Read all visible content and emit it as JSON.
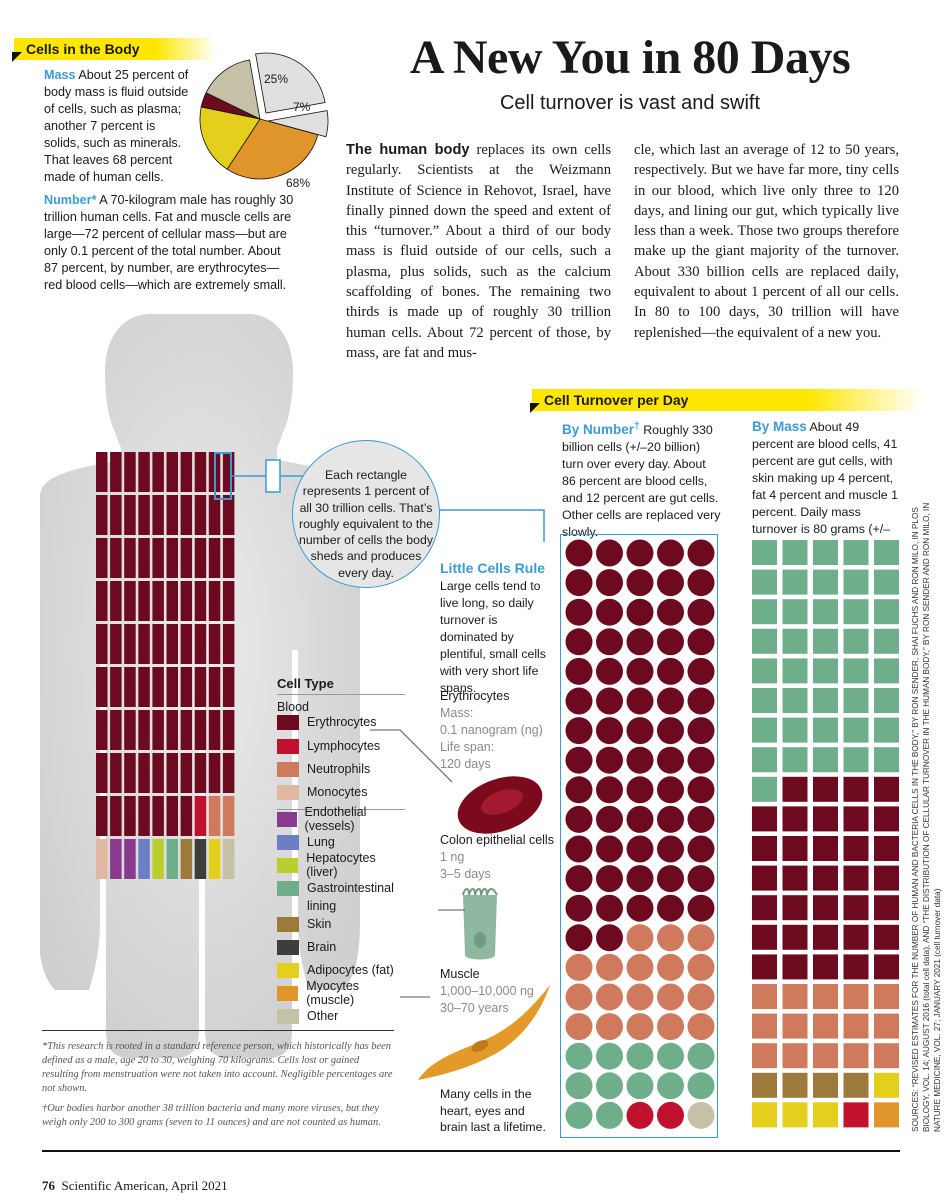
{
  "title": "A New You in 80 Days",
  "subtitle": "Cell turnover is vast and swift",
  "cells_in_body": {
    "tag": "Cells in the Body",
    "mass_label": "Mass",
    "mass_text": "About 25 percent of body mass is fluid outside of cells, such as plasma; another 7 percent is solids, such as minerals. That leaves 68 percent made of human cells.",
    "number_label": "Number*",
    "number_text": "A 70-kilogram male has roughly 30 trillion human cells. Fat and muscle cells are large—72 percent of cellular mass—but are only 0.1 percent of the total number. About 87 percent, by number, are erythrocytes—red blood cells—which are extremely small."
  },
  "body_paragraph": {
    "lead": "The human body",
    "col1": "replaces its own cells regularly. Scientists at the Weizmann Institute of Science in Rehovot, Israel, have finally pinned down the speed and extent of this “turnover.” About a third of our body mass is fluid outside of our cells, such a plasma, plus solids, such as the calcium scaffolding of bones. The remaining two thirds is made up of roughly 30 trillion human cells. About 72 percent of those, by mass, are fat and mus-",
    "col2": "cle, which last an average of 12 to 50 years, respectively. But we have far more, tiny cells in our blood, which live only three to 120 days, and lining our gut, which typically live less than a week. Those two groups therefore make up the giant majority of the turnover. About 330 billion cells are replaced daily, equivalent to about 1 percent of all our cells. In 80 to 100 days, 30 trillion will have replenished—the equivalent of a new you."
  },
  "rectangle_note": "Each rectangle represents 1 percent of all 30 trillion cells. That’s roughly equivalent to the number of cells the body sheds and produces every day.",
  "turnover": {
    "tag": "Cell Turnover per Day",
    "by_number_label": "By Number",
    "dagger": "†",
    "by_number_text": "Roughly 330 billion cells (+/–20 billion) turn over every day. About 86 percent are blood cells, and 12 percent are gut cells. Other cells are replaced very slowly.",
    "by_mass_label": "By Mass",
    "by_mass_text": "About 49 percent are blood cells, 41 percent are gut cells, with skin making up 4 percent, fat 4 percent and muscle 1 percent. Daily mass turnover is 80 grams (+/–20)."
  },
  "little_cells": {
    "title": "Little Cells Rule",
    "text": "Large cells tend to live long, so daily turnover is dominated by plentiful, small cells with very short life spans.",
    "erythrocytes": {
      "name": "Erythrocytes",
      "line1": "Mass:",
      "line2": "0.1 nanogram (ng)",
      "line3": "Life span:",
      "line4": "120 days"
    },
    "colon": {
      "name": "Colon epithelial cells",
      "line1": "1 ng",
      "line2": "3–5 days"
    },
    "muscle": {
      "name": "Muscle",
      "line1": "1,000–10,000 ng",
      "line2": "30–70 years"
    },
    "lifetime": "Many cells in the heart, eyes and brain last a lifetime."
  },
  "legend": {
    "title": "Cell Type",
    "blood": "Blood",
    "items": [
      {
        "name": "Erythrocytes",
        "color": "#6e0a20"
      },
      {
        "name": "Lymphocytes",
        "color": "#c0112e"
      },
      {
        "name": "Neutrophils",
        "color": "#cf7a5c"
      },
      {
        "name": "Monocytes",
        "color": "#e0b7a0"
      },
      {
        "name": "Endothelial (vessels)",
        "color": "#8a3a8e"
      },
      {
        "name": "Lung",
        "color": "#6b7fc4"
      },
      {
        "name": "Hepatocytes (liver)",
        "color": "#bccd2e"
      },
      {
        "name": "Gastrointestinal",
        "name2": "lining",
        "color": "#6fae8a"
      },
      {
        "name": "Skin",
        "color": "#9c7a3c"
      },
      {
        "name": "Brain",
        "color": "#3d3d3a"
      },
      {
        "name": "Adipocytes (fat)",
        "color": "#e3cf1c"
      },
      {
        "name": "Myocytes (muscle)",
        "color": "#e0952a"
      },
      {
        "name": "Other",
        "color": "#c4c1a6"
      }
    ]
  },
  "footnotes": {
    "star": "*This research is rooted in a standard reference person, which historically has been defined as a male, age 20 to 30, weighing 70 kilograms. Cells lost or gained resulting from menstruation were not taken into account. Negligible percentages are not shown.",
    "dagger": "†Our bodies harbor another 38 trillion bacteria and many more viruses, but they weigh only 200 to 300 grams (seven to 11 ounces) and are not counted as human."
  },
  "sources": "SOURCES: “REVISED ESTIMATES FOR THE NUMBER OF HUMAN AND BACTERIA CELLS IN THE BODY,” BY RON SENDER, SHAI FUCHS AND RON MILO, IN PLOS BIOLOGY, VOL. 14; AUGUST 2016 (total cell data), AND “THE DISTRIBUTION OF CELLULAR TURNOVER IN THE HUMAN BODY,” BY RON SENDER AND RON MILO, IN NATURE MEDICINE, VOL. 27; JANUARY 2021 (cell turnover data)",
  "folio": {
    "page": "76",
    "pub": "Scientific American, April 2021"
  },
  "chart_data": [
    {
      "type": "pie",
      "labels": [
        "25%",
        "7%",
        "68%"
      ],
      "categories": [
        "Fluid outside cells",
        "Solids",
        "Human cells"
      ],
      "values": [
        25,
        7,
        68
      ],
      "cell_breakdown": {
        "Myocytes (muscle)": 30,
        "Adipocytes (fat)": 19,
        "Erythrocytes": 4,
        "Other": 15
      }
    },
    {
      "type": "table",
      "name": "body_rectangles",
      "categories": [
        "Erythrocytes",
        "Lymphocytes",
        "Neutrophils",
        "Monocytes",
        "Endothelial (vessels)",
        "Lung",
        "Hepatocytes (liver)",
        "Gastrointestinal lining",
        "Skin",
        "Brain",
        "Adipocytes (fat)",
        "Myocytes (muscle)",
        "Other"
      ],
      "values": [
        87,
        1,
        2,
        1,
        2,
        1,
        1,
        1,
        1,
        1,
        1,
        0,
        1
      ]
    },
    {
      "type": "table",
      "name": "turnover_by_number",
      "categories": [
        "Erythrocytes",
        "Neutrophils",
        "Gastrointestinal lining",
        "Lymphocytes",
        "Other"
      ],
      "values": [
        67,
        18,
        12,
        2,
        1
      ]
    },
    {
      "type": "table",
      "name": "turnover_by_mass",
      "categories": [
        "Gastrointestinal lining",
        "Erythrocytes",
        "Neutrophils",
        "Skin",
        "Adipocytes (fat)",
        "Lymphocytes",
        "Myocytes (muscle)",
        "Other"
      ],
      "values": [
        41,
        34,
        15,
        4,
        4,
        1,
        1,
        1
      ]
    }
  ]
}
